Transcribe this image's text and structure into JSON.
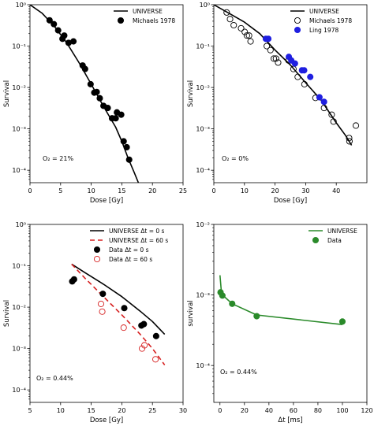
{
  "chart_data": [
    {
      "type": "scatter",
      "xscale": "linear",
      "yscale": "log",
      "xlim": [
        0,
        25
      ],
      "ylim": [
        5e-05,
        1
      ],
      "xticks": [
        0,
        5,
        10,
        15,
        20,
        25
      ],
      "yticks": [
        0.0001,
        0.001,
        0.01,
        0.1,
        1
      ],
      "ytick_labels": [
        "10⁻⁴",
        "10⁻³",
        "10⁻²",
        "10⁻¹",
        "10⁰"
      ],
      "xlabel": "Dose [Gy]",
      "ylabel": "Survival",
      "annotation": "O₂ = 21%",
      "legend_position": "upper-right",
      "series": [
        {
          "name": "UNIVERSE",
          "kind": "line",
          "color": "#000000",
          "dash": "",
          "x": [
            0,
            2,
            4,
            6,
            8,
            10,
            12,
            14,
            15,
            16,
            17,
            17.7
          ],
          "y": [
            1,
            0.62,
            0.3,
            0.12,
            0.04,
            0.012,
            0.0035,
            0.0011,
            0.0005,
            0.0002,
            9e-05,
            5e-05
          ]
        },
        {
          "name": "Michaels 1978",
          "kind": "marker",
          "color": "#000000",
          "marker": "filled",
          "x": [
            3.2,
            3.9,
            4.6,
            5.3,
            5.6,
            6.3,
            7.1,
            8.6,
            9.0,
            9.9,
            10.5,
            10.9,
            11.4,
            12.0,
            12.7,
            13.4,
            14.0,
            14.2,
            14.9,
            15.3,
            15.8,
            16.2
          ],
          "y": [
            0.42,
            0.34,
            0.24,
            0.15,
            0.18,
            0.12,
            0.13,
            0.034,
            0.028,
            0.012,
            0.0075,
            0.0078,
            0.0055,
            0.0036,
            0.0032,
            0.0018,
            0.0018,
            0.0025,
            0.0022,
            0.0005,
            0.00036,
            0.00018
          ]
        }
      ]
    },
    {
      "type": "scatter",
      "xscale": "linear",
      "yscale": "log",
      "xlim": [
        0,
        50
      ],
      "ylim": [
        5e-05,
        1
      ],
      "xticks": [
        0,
        10,
        20,
        30,
        40
      ],
      "yticks": [
        0.0001,
        0.001,
        0.01,
        0.1,
        1
      ],
      "ytick_labels": [
        "10⁻⁴",
        "10⁻³",
        "10⁻²",
        "10⁻¹",
        "10⁰"
      ],
      "xlabel": "Dose [Gy]",
      "ylabel": "Survival",
      "annotation": "O₂ = 0%",
      "legend_position": "upper-right",
      "series": [
        {
          "name": "UNIVERSE",
          "kind": "line",
          "color": "#000000",
          "dash": "",
          "x": [
            0,
            5,
            10,
            15,
            20,
            25,
            30,
            35,
            40,
            43,
            45
          ],
          "y": [
            1,
            0.62,
            0.38,
            0.2,
            0.08,
            0.035,
            0.013,
            0.005,
            0.0014,
            0.0007,
            0.0004
          ]
        },
        {
          "name": "Michaels 1978",
          "kind": "marker",
          "color": "#000000",
          "marker": "open",
          "x": [
            4.2,
            5.3,
            6.5,
            8.9,
            10.1,
            10.8,
            11.5,
            12.0,
            17.3,
            18.5,
            19.6,
            20.3,
            21.0,
            24.4,
            26.0,
            27.4,
            29.6,
            33.2,
            36.0,
            38.5,
            39.1,
            44.2,
            44.3,
            46.4
          ],
          "y": [
            0.65,
            0.45,
            0.32,
            0.27,
            0.22,
            0.18,
            0.18,
            0.13,
            0.1,
            0.08,
            0.05,
            0.05,
            0.04,
            0.045,
            0.028,
            0.018,
            0.012,
            0.0056,
            0.0032,
            0.0022,
            0.0015,
            0.0006,
            0.0005,
            0.0012
          ]
        },
        {
          "name": "Ling 1978",
          "kind": "marker",
          "color": "#1f1fe0",
          "marker": "filled",
          "x": [
            17.0,
            17.8,
            24.5,
            25.3,
            26.5,
            28.8,
            29.5,
            31.5,
            34.5,
            36.0
          ],
          "y": [
            0.15,
            0.15,
            0.055,
            0.045,
            0.038,
            0.026,
            0.026,
            0.018,
            0.0058,
            0.0045
          ]
        }
      ]
    },
    {
      "type": "scatter",
      "xscale": "linear",
      "yscale": "log",
      "xlim": [
        5,
        30
      ],
      "ylim": [
        5e-05,
        1
      ],
      "xticks": [
        5,
        10,
        15,
        20,
        25,
        30
      ],
      "yticks": [
        0.0001,
        0.001,
        0.01,
        0.1,
        1
      ],
      "ytick_labels": [
        "10⁻⁴",
        "10⁻³",
        "10⁻²",
        "10⁻¹",
        "10⁰"
      ],
      "xlabel": "Dose [Gy]",
      "ylabel": "Survival",
      "annotation": "O₂ = 0.44%",
      "legend_position": "upper-right",
      "series": [
        {
          "name": "UNIVERSE Δt = 0 s",
          "kind": "line",
          "color": "#000000",
          "dash": "",
          "x": [
            11.8,
            14,
            17,
            20,
            23,
            25,
            27
          ],
          "y": [
            0.11,
            0.068,
            0.036,
            0.018,
            0.008,
            0.0045,
            0.0022
          ]
        },
        {
          "name": "UNIVERSE Δt = 60 s",
          "kind": "line",
          "color": "#d62020",
          "dash": "6,4",
          "x": [
            11.8,
            14,
            17,
            20,
            23,
            25,
            27
          ],
          "y": [
            0.11,
            0.05,
            0.018,
            0.0065,
            0.0022,
            0.001,
            0.0004
          ]
        },
        {
          "name": "Data Δt = 0 s",
          "kind": "marker",
          "color": "#000000",
          "marker": "filled",
          "x": [
            11.9,
            12.2,
            16.9,
            20.4,
            23.2,
            23.6,
            25.6
          ],
          "y": [
            0.042,
            0.047,
            0.021,
            0.0095,
            0.0036,
            0.0039,
            0.002
          ]
        },
        {
          "name": "Data Δt = 60 s",
          "kind": "marker",
          "color": "#d62020",
          "marker": "open",
          "x": [
            16.6,
            16.8,
            20.3,
            23.3,
            23.7,
            25.5
          ],
          "y": [
            0.012,
            0.0078,
            0.0032,
            0.001,
            0.0012,
            0.00055
          ]
        }
      ]
    },
    {
      "type": "scatter",
      "xscale": "linear",
      "yscale": "log",
      "xlim": [
        -5,
        120
      ],
      "ylim": [
        3e-05,
        0.01
      ],
      "xticks": [
        0,
        20,
        40,
        60,
        80,
        100,
        120
      ],
      "yticks": [
        0.0001,
        0.001,
        0.01
      ],
      "ytick_labels": [
        "10⁻⁴",
        "10⁻³",
        "10⁻²"
      ],
      "xlabel": "Δt [ms]",
      "ylabel": "survival",
      "annotation": "O₂ = 0.44%",
      "legend_position": "upper-right",
      "series": [
        {
          "name": "UNIVERSE",
          "kind": "line",
          "color": "#2a8a2a",
          "dash": "",
          "x": [
            0,
            1,
            2,
            4,
            10,
            30,
            100
          ],
          "y": [
            0.0019,
            0.0012,
            0.00105,
            0.00093,
            0.00075,
            0.00052,
            0.00038
          ]
        },
        {
          "name": "Data",
          "kind": "marker",
          "color": "#2a8a2a",
          "marker": "filled",
          "x": [
            0.5,
            2,
            10,
            30,
            100
          ],
          "y": [
            0.00109,
            0.00098,
            0.00075,
            0.0005,
            0.00042
          ]
        }
      ]
    }
  ]
}
